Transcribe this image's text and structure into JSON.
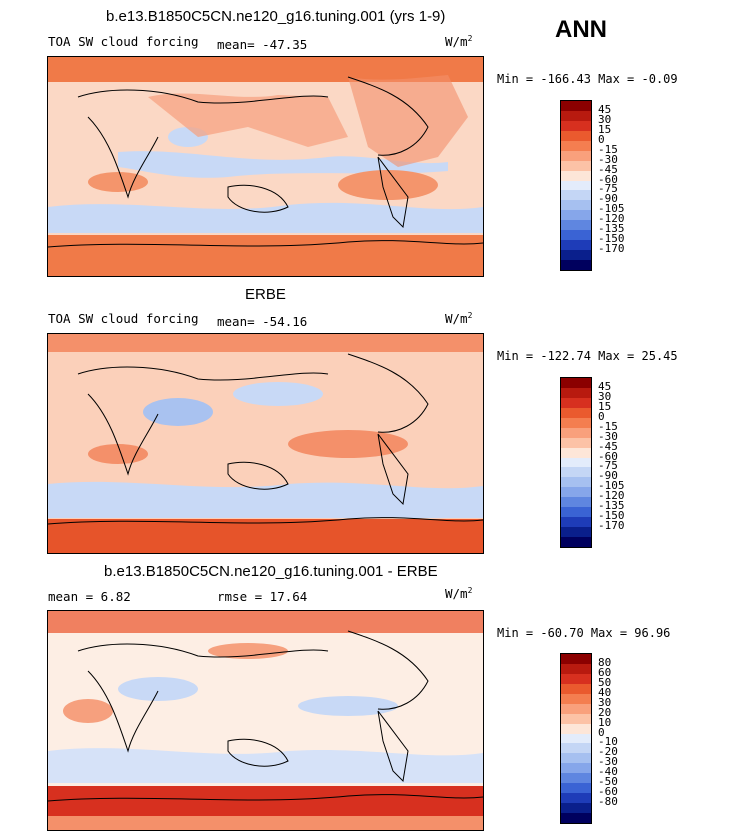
{
  "season": "ANN",
  "panels": [
    {
      "title": "b.e13.B1850C5CN.ne120_g16.tuning.001 (yrs 1-9)",
      "left_label": "TOA SW cloud forcing",
      "stat1": "mean=  -47.35",
      "stat2": "",
      "units": "W/m",
      "units_exp": "2",
      "minmax": "Min = -166.43 Max =  -0.09",
      "levels": [
        "45",
        "30",
        "15",
        "0",
        "-15",
        "-30",
        "-45",
        "-60",
        "-75",
        "-90",
        "-105",
        "-120",
        "-135",
        "-150",
        "-170"
      ]
    },
    {
      "title": "ERBE",
      "left_label": "TOA SW cloud forcing",
      "stat1": "mean= -54.16",
      "stat2": "",
      "units": "W/m",
      "units_exp": "2",
      "minmax": "Min = -122.74 Max =  25.45",
      "levels": [
        "45",
        "30",
        "15",
        "0",
        "-15",
        "-30",
        "-45",
        "-60",
        "-75",
        "-90",
        "-105",
        "-120",
        "-135",
        "-150",
        "-170"
      ]
    },
    {
      "title": "b.e13.B1850C5CN.ne120_g16.tuning.001 - ERBE",
      "left_label": "mean =   6.82",
      "stat1": "rmse =  17.64",
      "stat2": "",
      "units": "W/m",
      "units_exp": "2",
      "minmax": "Min = -60.70 Max =  96.96",
      "levels": [
        "80",
        "60",
        "50",
        "40",
        "30",
        "20",
        "10",
        "0",
        "-10",
        "-20",
        "-30",
        "-40",
        "-50",
        "-60",
        "-80"
      ]
    }
  ],
  "colors": {
    "scale": [
      "#8b0000",
      "#b81a0f",
      "#d7301f",
      "#ea5a2e",
      "#f47e50",
      "#f9a07c",
      "#fcc2a6",
      "#fde6d8",
      "#e3ecfb",
      "#c4d6f5",
      "#a6c0f0",
      "#86a6ea",
      "#5f86e0",
      "#3a63d4",
      "#1e3cb8",
      "#0a1f8c",
      "#00005e"
    ]
  }
}
